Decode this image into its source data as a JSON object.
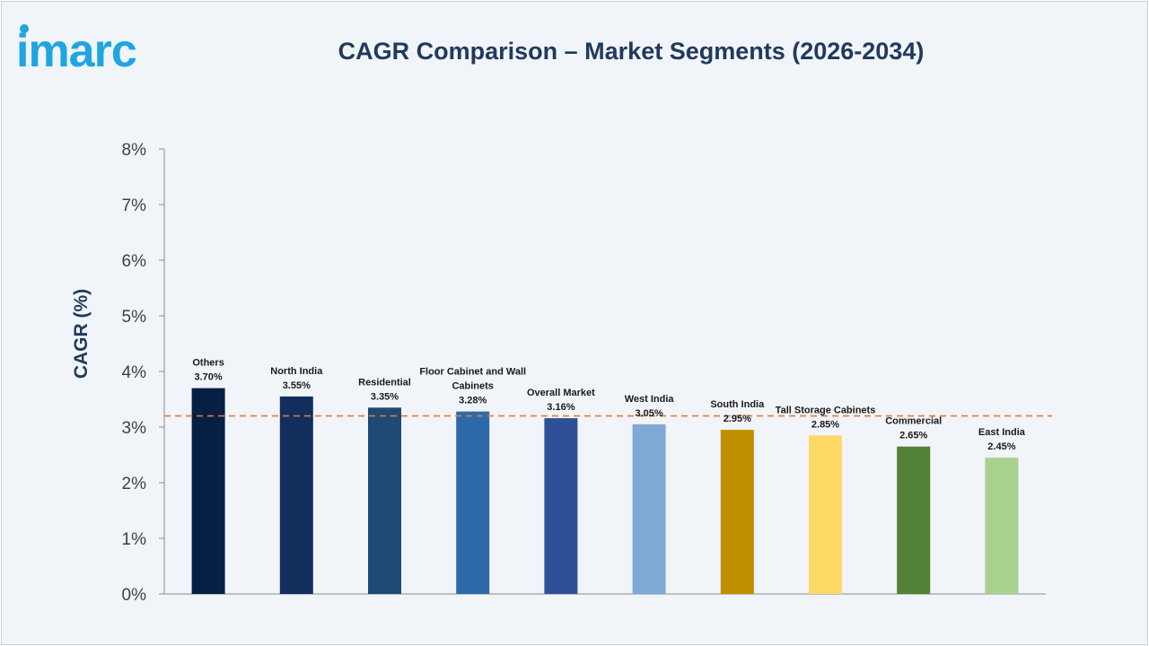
{
  "logo": {
    "text": "imarc",
    "color": "#1fa6e0"
  },
  "title": "CAGR Comparison – Market Segments (2026-2034)",
  "chart_data": {
    "type": "bar",
    "title": "CAGR Comparison – Market Segments (2026-2034)",
    "ylabel": "CAGR (%)",
    "xlabel": "",
    "ylim": [
      0,
      8
    ],
    "yticks": [
      0,
      1,
      2,
      3,
      4,
      5,
      6,
      7,
      8
    ],
    "ytick_labels": [
      "0%",
      "1%",
      "2%",
      "3%",
      "4%",
      "5%",
      "6%",
      "7%",
      "8%"
    ],
    "grid": false,
    "reference_line": {
      "value": 3.2,
      "style": "dashed",
      "color": "#e07b39"
    },
    "categories": [
      "Others",
      "North India",
      "Residential",
      "Floor Cabinet and Wall Cabinets",
      "Overall Market",
      "West India",
      "South India",
      "Tall Storage Cabinets",
      "Commercial",
      "East India"
    ],
    "category_label_lines": [
      [
        "Others"
      ],
      [
        "North India"
      ],
      [
        "Residential"
      ],
      [
        "Floor Cabinet and Wall",
        "Cabinets"
      ],
      [
        "Overall Market"
      ],
      [
        "West India"
      ],
      [
        "South India"
      ],
      [
        "Tall Storage Cabinets"
      ],
      [
        "Commercial"
      ],
      [
        "East India"
      ]
    ],
    "values": [
      3.7,
      3.55,
      3.35,
      3.28,
      3.16,
      3.05,
      2.95,
      2.85,
      2.65,
      2.45
    ],
    "value_labels": [
      "3.70%",
      "3.55%",
      "3.35%",
      "3.28%",
      "3.16%",
      "3.05%",
      "2.95%",
      "2.85%",
      "2.65%",
      "2.45%"
    ],
    "colors": [
      "#061f42",
      "#132e5c",
      "#1e4a75",
      "#2e6aaa",
      "#2e5096",
      "#80a9d6",
      "#bf8f00",
      "#ffd966",
      "#538135",
      "#a9d18e"
    ]
  }
}
